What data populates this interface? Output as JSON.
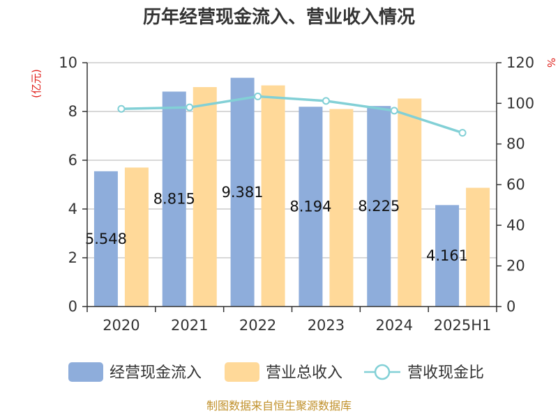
{
  "chart_data": {
    "type": "bar",
    "title": "历年经营现金流入、营业收入情况",
    "categories": [
      "2020",
      "2021",
      "2022",
      "2023",
      "2024",
      "2025H1"
    ],
    "series": [
      {
        "name": "经营现金流入",
        "kind": "bar",
        "axis": "left",
        "color": "#8eaddb",
        "values": [
          5.548,
          8.815,
          9.381,
          8.194,
          8.225,
          4.161
        ],
        "labels": [
          "5.548",
          "8.815",
          "9.381",
          "8.194",
          "8.225",
          "4.161"
        ]
      },
      {
        "name": "营业总收入",
        "kind": "bar",
        "axis": "left",
        "color": "#ffd999",
        "values": [
          5.7,
          9.0,
          9.07,
          8.1,
          8.53,
          4.87
        ]
      },
      {
        "name": "营收现金比",
        "kind": "line",
        "axis": "right",
        "color": "#82d0d6",
        "values": [
          97.3,
          98.0,
          103.4,
          101.2,
          96.4,
          85.5
        ]
      }
    ],
    "y_left": {
      "unit": "(亿元)",
      "min": 0,
      "max": 10,
      "ticks": [
        0,
        2,
        4,
        6,
        8,
        10
      ]
    },
    "y_right": {
      "unit": "%",
      "min": 0,
      "max": 120,
      "ticks": [
        0,
        20,
        40,
        60,
        80,
        100,
        120
      ]
    },
    "grid": true,
    "legend_position": "bottom"
  },
  "source": "制图数据来自恒生聚源数据库"
}
